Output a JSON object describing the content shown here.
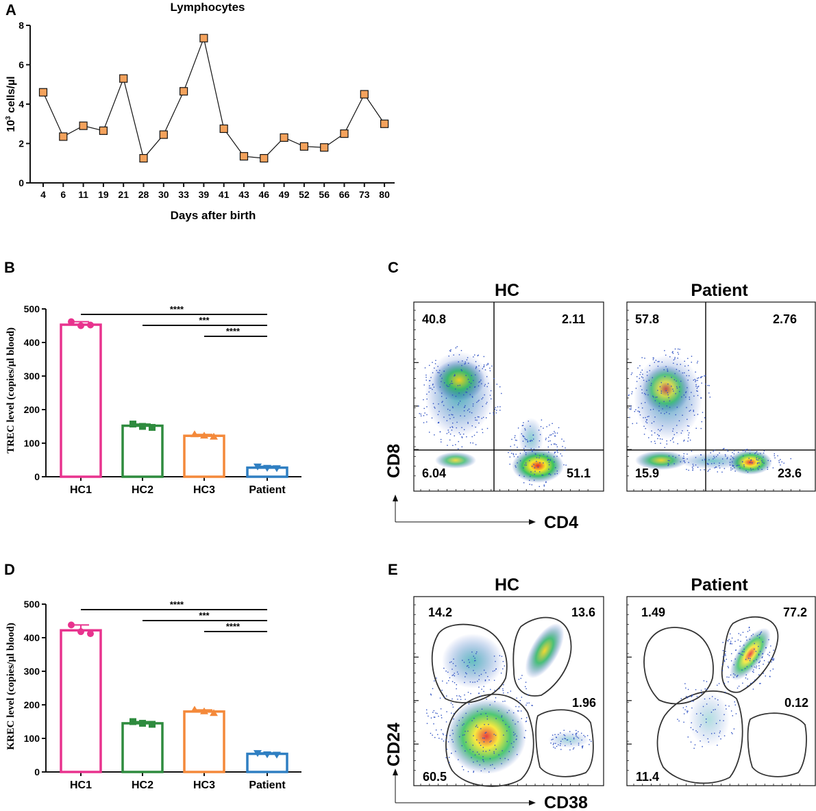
{
  "colors": {
    "hc1": "#e8338e",
    "hc2": "#2e8b3e",
    "hc3": "#f4893a",
    "patient": "#2f7fc2",
    "marker_fill": "#f4a25c",
    "axis": "#111111"
  },
  "chart_data": [
    {
      "panel": "A",
      "type": "line",
      "title": "Lymphocytes",
      "xlabel": "Days after birth",
      "ylabel_html": "10<tspan baseline-shift='super' font-size='10'>3</tspan> cells/µl",
      "ylabel_base": "10",
      "ylabel_sup": "3",
      "ylabel_rest": " cells/µl",
      "x": [
        "4",
        "6",
        "11",
        "19",
        "21",
        "28",
        "30",
        "33",
        "39",
        "41",
        "43",
        "46",
        "49",
        "52",
        "56",
        "66",
        "73",
        "80"
      ],
      "y": [
        4.6,
        2.35,
        2.9,
        2.65,
        5.3,
        1.25,
        2.45,
        4.65,
        7.35,
        2.75,
        1.35,
        1.25,
        2.3,
        1.85,
        1.8,
        2.5,
        4.5,
        3.0
      ],
      "ylim": [
        0,
        8
      ],
      "yticks": [
        0,
        2,
        4,
        6,
        8
      ]
    },
    {
      "panel": "B",
      "type": "bar",
      "ylabel": "TREC level (copies/µl blood)",
      "categories": [
        "HC1",
        "HC2",
        "HC3",
        "Patient"
      ],
      "values": [
        453,
        152,
        122,
        27
      ],
      "points": [
        [
          462,
          450,
          452
        ],
        [
          157,
          150,
          147
        ],
        [
          126,
          122,
          119
        ],
        [
          31,
          27,
          26
        ]
      ],
      "ylim": [
        0,
        500
      ],
      "yticks": [
        0,
        100,
        200,
        300,
        400,
        500
      ],
      "significance": [
        {
          "from": "HC1",
          "to": "Patient",
          "label": "****"
        },
        {
          "from": "HC2",
          "to": "Patient",
          "label": "***"
        },
        {
          "from": "HC3",
          "to": "Patient",
          "label": "****"
        }
      ]
    },
    {
      "panel": "D",
      "type": "bar",
      "ylabel": "KREC level (copies/µl blood)",
      "categories": [
        "HC1",
        "HC2",
        "HC3",
        "Patient"
      ],
      "values": [
        422,
        145,
        180,
        54
      ],
      "points": [
        [
          438,
          418,
          412
        ],
        [
          150,
          145,
          142
        ],
        [
          185,
          180,
          175
        ],
        [
          57,
          53,
          52
        ]
      ],
      "ylim": [
        0,
        500
      ],
      "yticks": [
        0,
        100,
        200,
        300,
        400,
        500
      ],
      "significance": [
        {
          "from": "HC1",
          "to": "Patient",
          "label": "****"
        },
        {
          "from": "HC2",
          "to": "Patient",
          "label": "***"
        },
        {
          "from": "HC3",
          "to": "Patient",
          "label": "****"
        }
      ]
    }
  ],
  "panel_labels": {
    "a": "A",
    "b": "B",
    "c": "C",
    "d": "D",
    "e": "E"
  },
  "flow_c": {
    "xaxis": "CD4",
    "yaxis": "CD8",
    "plots": [
      {
        "title": "HC",
        "q_ul": "40.8",
        "q_ur": "2.11",
        "q_ll": "6.04",
        "q_lr": "51.1"
      },
      {
        "title": "Patient",
        "q_ul": "57.8",
        "q_ur": "2.76",
        "q_ll": "15.9",
        "q_lr": "23.6"
      }
    ]
  },
  "flow_e": {
    "xaxis": "CD38",
    "yaxis": "CD24",
    "plots": [
      {
        "title": "HC",
        "g_ul": "14.2",
        "g_ur": "13.6",
        "g_r": "1.96",
        "g_ll": "60.5"
      },
      {
        "title": "Patient",
        "g_ul": "1.49",
        "g_ur": "77.2",
        "g_r": "0.12",
        "g_ll": "11.4"
      }
    ]
  }
}
